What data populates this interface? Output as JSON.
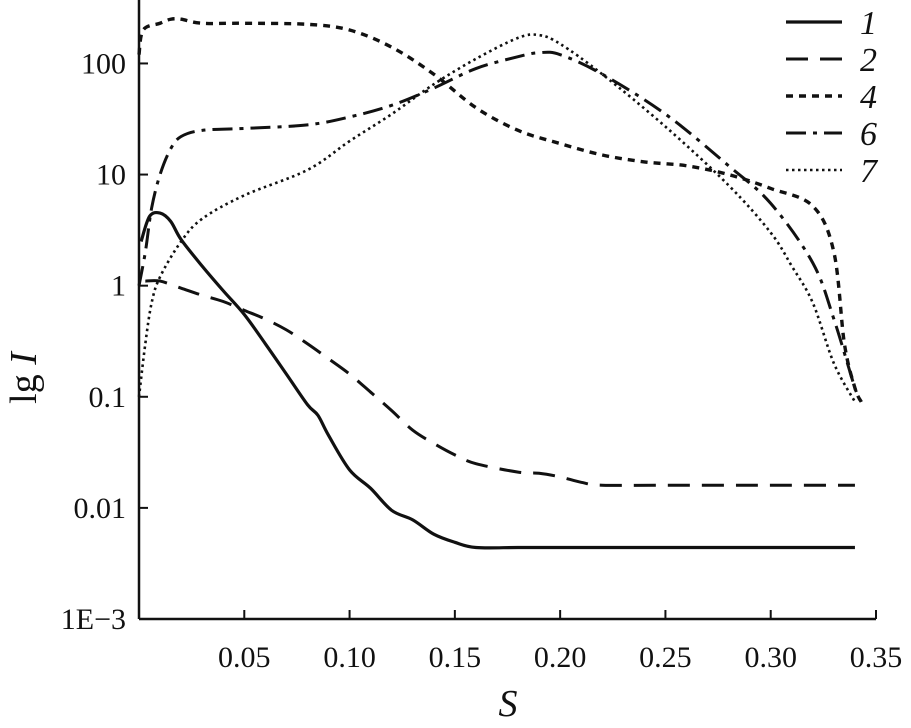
{
  "chart_data": {
    "type": "line",
    "title": "",
    "xlabel": "S",
    "ylabel_prefix": "lg ",
    "ylabel_var": "I",
    "x_scale": "linear",
    "y_scale": "log",
    "xlim": [
      0,
      0.35
    ],
    "ylim": [
      0.001,
      350
    ],
    "x_ticks": [
      0.05,
      0.1,
      0.15,
      0.2,
      0.25,
      0.3,
      0.35
    ],
    "x_tick_labels": [
      "0.05",
      "0.10",
      "0.15",
      "0.20",
      "0.25",
      "0.30",
      "0.35"
    ],
    "y_ticks": [
      0.001,
      0.01,
      0.1,
      1,
      10,
      100
    ],
    "y_tick_labels": [
      "1E−3",
      "0.01",
      "0.1",
      "1",
      "10",
      "100"
    ],
    "grid": false,
    "legend_position": "top-right",
    "series": [
      {
        "name": "1",
        "style": "solid",
        "x": [
          0.001,
          0.005,
          0.01,
          0.015,
          0.02,
          0.03,
          0.04,
          0.05,
          0.06,
          0.07,
          0.08,
          0.085,
          0.09,
          0.1,
          0.11,
          0.12,
          0.13,
          0.14,
          0.15,
          0.16,
          0.18,
          0.2,
          0.25,
          0.3,
          0.34
        ],
        "y": [
          2.5,
          4.2,
          4.5,
          3.8,
          2.6,
          1.5,
          0.9,
          0.55,
          0.3,
          0.16,
          0.085,
          0.068,
          0.045,
          0.022,
          0.015,
          0.0095,
          0.0078,
          0.0058,
          0.0049,
          0.0044,
          0.0044,
          0.0044,
          0.0044,
          0.0044,
          0.0044
        ]
      },
      {
        "name": "2",
        "style": "dashed",
        "x": [
          0.003,
          0.01,
          0.02,
          0.03,
          0.04,
          0.05,
          0.06,
          0.07,
          0.08,
          0.09,
          0.1,
          0.11,
          0.12,
          0.13,
          0.14,
          0.15,
          0.16,
          0.18,
          0.19,
          0.2,
          0.21,
          0.22,
          0.25,
          0.3,
          0.34
        ],
        "y": [
          1.1,
          1.1,
          0.95,
          0.82,
          0.72,
          0.6,
          0.5,
          0.4,
          0.3,
          0.22,
          0.16,
          0.11,
          0.075,
          0.05,
          0.038,
          0.03,
          0.025,
          0.021,
          0.0205,
          0.019,
          0.017,
          0.016,
          0.016,
          0.016,
          0.016
        ]
      },
      {
        "name": "4",
        "style": "dotted",
        "x": [
          0.0,
          0.002,
          0.01,
          0.015,
          0.02,
          0.03,
          0.05,
          0.08,
          0.1,
          0.12,
          0.14,
          0.16,
          0.18,
          0.2,
          0.22,
          0.24,
          0.26,
          0.28,
          0.3,
          0.32,
          0.33,
          0.335,
          0.34,
          0.343
        ],
        "y": [
          120,
          200,
          230,
          250,
          250,
          230,
          230,
          225,
          200,
          140,
          80,
          40,
          25,
          19,
          15,
          13,
          12,
          10,
          7.5,
          5.2,
          2.0,
          0.3,
          0.12,
          0.09
        ]
      },
      {
        "name": "6",
        "style": "dash-dot",
        "x": [
          0.0,
          0.003,
          0.006,
          0.01,
          0.015,
          0.02,
          0.03,
          0.05,
          0.08,
          0.1,
          0.12,
          0.14,
          0.16,
          0.18,
          0.19,
          0.2,
          0.22,
          0.25,
          0.28,
          0.3,
          0.32,
          0.33,
          0.34,
          0.343
        ],
        "y": [
          1.0,
          2.0,
          5.0,
          10,
          17,
          22,
          25,
          26,
          28,
          33,
          42,
          60,
          90,
          115,
          125,
          120,
          80,
          35,
          12,
          5.5,
          1.6,
          0.5,
          0.12,
          0.09
        ]
      },
      {
        "name": "7",
        "style": "fine-dotted",
        "x": [
          0.0,
          0.003,
          0.006,
          0.01,
          0.02,
          0.03,
          0.05,
          0.08,
          0.1,
          0.12,
          0.14,
          0.16,
          0.18,
          0.19,
          0.2,
          0.22,
          0.25,
          0.28,
          0.3,
          0.31,
          0.32,
          0.33,
          0.34
        ],
        "y": [
          0.1,
          0.3,
          0.7,
          1.2,
          2.5,
          4.0,
          6.5,
          11,
          20,
          35,
          65,
          110,
          170,
          180,
          150,
          80,
          27,
          8,
          3,
          1.5,
          0.7,
          0.2,
          0.09
        ]
      }
    ]
  }
}
